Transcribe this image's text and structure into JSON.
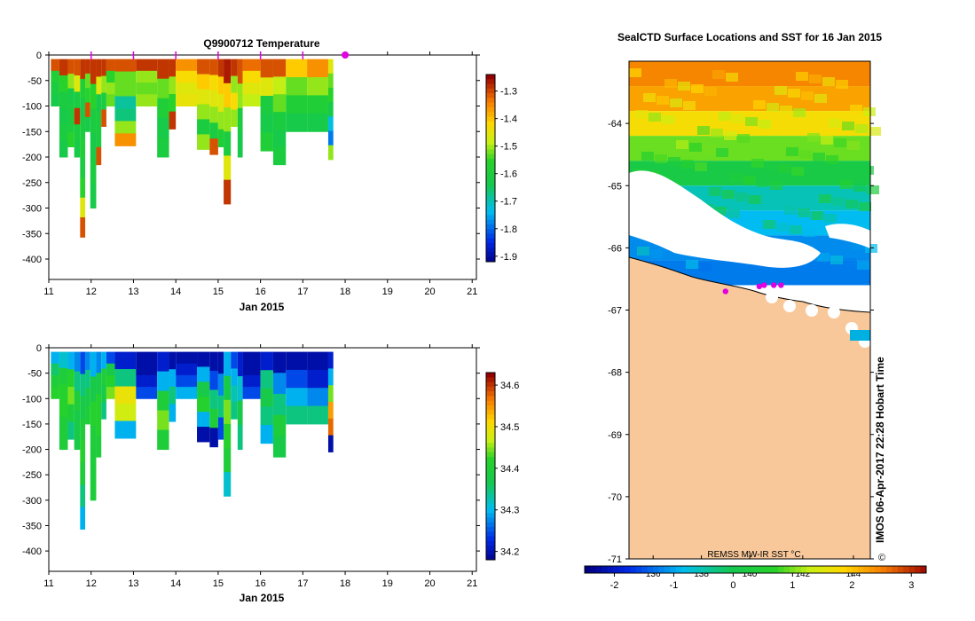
{
  "chart_data": [
    {
      "type": "heatmap",
      "title": "Q9900712  Temperature",
      "xlabel": "Jan 2015",
      "xlim": [
        11,
        21.1
      ],
      "ylim": [
        -440,
        0
      ],
      "x_ticks": [
        "11",
        "12",
        "13",
        "14",
        "15",
        "16",
        "17",
        "18",
        "19",
        "20",
        "21"
      ],
      "y_ticks": [
        "0",
        "-50",
        "-100",
        "-150",
        "-200",
        "-250",
        "-300",
        "-350",
        "-400"
      ],
      "colorbar_ticks": [
        "-1.3",
        "-1.4",
        "-1.5",
        "-1.6",
        "-1.7",
        "-1.8",
        "-1.9"
      ],
      "colorbar_range": [
        -1.92,
        -1.24
      ],
      "profile_markers_x": [
        12,
        13,
        14,
        15,
        16,
        17
      ],
      "current_marker_x": 18,
      "profiles": [
        {
          "x": 11.05,
          "w": 0.2,
          "depth": -100,
          "values": [
            -1.3,
            -1.58,
            -1.6,
            -1.62
          ]
        },
        {
          "x": 11.25,
          "w": 0.2,
          "depth": -200,
          "values": [
            -1.28,
            -1.55,
            -1.6,
            -1.62,
            -1.6,
            -1.62
          ]
        },
        {
          "x": 11.45,
          "w": 0.15,
          "depth": -180,
          "values": [
            -1.3,
            -1.5,
            -1.62,
            -1.6,
            -1.6,
            -1.55
          ]
        },
        {
          "x": 11.6,
          "w": 0.14,
          "depth": -200,
          "values": [
            -1.3,
            -1.45,
            -1.6,
            -1.28,
            -1.6,
            -1.62
          ]
        },
        {
          "x": 11.74,
          "w": 0.12,
          "depth": -357,
          "values": [
            -1.28,
            -1.58,
            -1.62,
            -1.6,
            -1.58,
            -1.6,
            -1.55,
            -1.45,
            -1.3
          ]
        },
        {
          "x": 11.86,
          "w": 0.12,
          "depth": -150,
          "values": [
            -1.28,
            -1.52,
            -1.55,
            -1.3,
            -1.62
          ]
        },
        {
          "x": 11.98,
          "w": 0.14,
          "depth": -300,
          "values": [
            -1.28,
            -1.55,
            -1.6,
            -1.62,
            -1.6,
            -1.62
          ]
        },
        {
          "x": 12.12,
          "w": 0.12,
          "depth": -215,
          "values": [
            -1.28,
            -1.45,
            -1.62,
            -1.6,
            -1.6,
            -1.3
          ]
        },
        {
          "x": 12.24,
          "w": 0.12,
          "depth": -140,
          "values": [
            -1.28,
            -1.5,
            -1.6,
            -1.3
          ]
        },
        {
          "x": 12.36,
          "w": 0.2,
          "depth": -100,
          "values": [
            -1.3,
            -1.55,
            -1.5,
            -1.52
          ]
        },
        {
          "x": 12.56,
          "w": 0.5,
          "depth": -178,
          "values": [
            -1.3,
            -1.52,
            -1.52,
            -1.68,
            -1.66,
            -1.5,
            -1.35
          ]
        },
        {
          "x": 13.06,
          "w": 0.5,
          "depth": -100,
          "values": [
            -1.28,
            -1.5,
            -1.52,
            -1.5
          ]
        },
        {
          "x": 13.56,
          "w": 0.28,
          "depth": -200,
          "values": [
            -1.28,
            -1.52,
            -1.58,
            -1.62,
            -1.6
          ]
        },
        {
          "x": 13.84,
          "w": 0.16,
          "depth": -145,
          "values": [
            -1.28,
            -1.5,
            -1.55,
            -1.28
          ]
        },
        {
          "x": 14.0,
          "w": 0.5,
          "depth": -100,
          "values": [
            -1.35,
            -1.42,
            -1.45,
            -1.44
          ]
        },
        {
          "x": 14.5,
          "w": 0.3,
          "depth": -185,
          "values": [
            -1.3,
            -1.4,
            -1.45,
            -1.5,
            -1.6,
            -1.5
          ]
        },
        {
          "x": 14.8,
          "w": 0.2,
          "depth": -195,
          "values": [
            -1.3,
            -1.42,
            -1.45,
            -1.5,
            -1.6,
            -1.3
          ]
        },
        {
          "x": 15.0,
          "w": 0.13,
          "depth": -180,
          "values": [
            -1.28,
            -1.4,
            -1.45,
            -1.5,
            -1.58
          ]
        },
        {
          "x": 15.13,
          "w": 0.17,
          "depth": -292,
          "values": [
            -1.26,
            -1.4,
            -1.5,
            -1.6,
            -1.45,
            -1.28
          ]
        },
        {
          "x": 15.3,
          "w": 0.16,
          "depth": -140,
          "values": [
            -1.28,
            -1.5,
            -1.42,
            -1.5
          ]
        },
        {
          "x": 15.46,
          "w": 0.12,
          "depth": -200,
          "values": [
            -1.3,
            -1.5,
            -1.6,
            -1.62
          ]
        },
        {
          "x": 15.58,
          "w": 0.42,
          "depth": -100,
          "values": [
            -1.32,
            -1.42,
            -1.45,
            -1.48
          ]
        },
        {
          "x": 16.0,
          "w": 0.3,
          "depth": -188,
          "values": [
            -1.3,
            -1.45,
            -1.6,
            -1.62,
            -1.58
          ]
        },
        {
          "x": 16.3,
          "w": 0.3,
          "depth": -215,
          "values": [
            -1.3,
            -1.48,
            -1.52,
            -1.6,
            -1.62,
            -1.6
          ]
        },
        {
          "x": 16.6,
          "w": 0.5,
          "depth": -150,
          "values": [
            -1.4,
            -1.52,
            -1.58,
            -1.62
          ]
        },
        {
          "x": 17.1,
          "w": 0.5,
          "depth": -150,
          "values": [
            -1.35,
            -1.5,
            -1.58,
            -1.62
          ]
        },
        {
          "x": 17.6,
          "w": 0.12,
          "depth": -205,
          "values": [
            -1.45,
            -1.52,
            -1.55,
            -1.62,
            -1.72,
            -1.78,
            -1.5
          ]
        }
      ]
    },
    {
      "type": "heatmap",
      "title": "",
      "xlabel": "Jan 2015",
      "xlim": [
        11,
        21.1
      ],
      "ylim": [
        -440,
        0
      ],
      "x_ticks": [
        "11",
        "12",
        "13",
        "14",
        "15",
        "16",
        "17",
        "18",
        "19",
        "20",
        "21"
      ],
      "y_ticks": [
        "0",
        "-50",
        "-100",
        "-150",
        "-200",
        "-250",
        "-300",
        "-350",
        "-400"
      ],
      "colorbar_ticks": [
        "34.6",
        "34.5",
        "34.4",
        "34.3",
        "34.2"
      ],
      "colorbar_range": [
        34.18,
        34.63
      ],
      "profiles": [
        {
          "x": 11.05,
          "w": 0.2,
          "depth": -100,
          "values": [
            34.3,
            34.36,
            34.4,
            34.42
          ]
        },
        {
          "x": 11.25,
          "w": 0.2,
          "depth": -200,
          "values": [
            34.32,
            34.4,
            34.42,
            34.42,
            34.4,
            34.4
          ]
        },
        {
          "x": 11.45,
          "w": 0.15,
          "depth": -180,
          "values": [
            34.3,
            34.42,
            34.45,
            34.4,
            34.35
          ]
        },
        {
          "x": 11.6,
          "w": 0.14,
          "depth": -200,
          "values": [
            34.28,
            34.35,
            34.4,
            34.38,
            34.38
          ]
        },
        {
          "x": 11.74,
          "w": 0.12,
          "depth": -357,
          "values": [
            34.25,
            34.35,
            34.38,
            34.4,
            34.42,
            34.4,
            34.35,
            34.3
          ]
        },
        {
          "x": 11.86,
          "w": 0.12,
          "depth": -150,
          "values": [
            34.28,
            34.35,
            34.38,
            34.4
          ]
        },
        {
          "x": 11.98,
          "w": 0.14,
          "depth": -300,
          "values": [
            34.3,
            34.38,
            34.42,
            34.4,
            34.4,
            34.4
          ]
        },
        {
          "x": 12.12,
          "w": 0.12,
          "depth": -215,
          "values": [
            34.28,
            34.38,
            34.42,
            34.42,
            34.4
          ]
        },
        {
          "x": 12.24,
          "w": 0.12,
          "depth": -140,
          "values": [
            34.3,
            34.4,
            34.38,
            34.35
          ]
        },
        {
          "x": 12.36,
          "w": 0.2,
          "depth": -100,
          "values": [
            34.25,
            34.38,
            34.42,
            34.45
          ]
        },
        {
          "x": 12.56,
          "w": 0.5,
          "depth": -178,
          "values": [
            34.22,
            34.35,
            34.5,
            34.48,
            34.3
          ]
        },
        {
          "x": 13.06,
          "w": 0.5,
          "depth": -100,
          "values": [
            34.2,
            34.2,
            34.22,
            34.25
          ]
        },
        {
          "x": 13.56,
          "w": 0.28,
          "depth": -200,
          "values": [
            34.22,
            34.3,
            34.4,
            34.45,
            34.4
          ]
        },
        {
          "x": 13.84,
          "w": 0.16,
          "depth": -145,
          "values": [
            34.2,
            34.3,
            34.35,
            34.3
          ]
        },
        {
          "x": 14.0,
          "w": 0.5,
          "depth": -100,
          "values": [
            34.2,
            34.22,
            34.25,
            34.3
          ]
        },
        {
          "x": 14.5,
          "w": 0.3,
          "depth": -185,
          "values": [
            34.2,
            34.3,
            34.38,
            34.42,
            34.3,
            34.2
          ]
        },
        {
          "x": 14.8,
          "w": 0.2,
          "depth": -195,
          "values": [
            34.2,
            34.25,
            34.35,
            34.4,
            34.2
          ]
        },
        {
          "x": 15.0,
          "w": 0.13,
          "depth": -180,
          "values": [
            34.2,
            34.28,
            34.35,
            34.25
          ]
        },
        {
          "x": 15.13,
          "w": 0.17,
          "depth": -292,
          "values": [
            34.3,
            34.38,
            34.45,
            34.42,
            34.4,
            34.32
          ]
        },
        {
          "x": 15.3,
          "w": 0.16,
          "depth": -140,
          "values": [
            34.25,
            34.3,
            34.33,
            34.35
          ]
        },
        {
          "x": 15.46,
          "w": 0.12,
          "depth": -200,
          "values": [
            34.22,
            34.32,
            34.38,
            34.35
          ]
        },
        {
          "x": 15.58,
          "w": 0.42,
          "depth": -100,
          "values": [
            34.2,
            34.2,
            34.22,
            34.25
          ]
        },
        {
          "x": 16.0,
          "w": 0.3,
          "depth": -188,
          "values": [
            34.22,
            34.35,
            34.38,
            34.35,
            34.3
          ]
        },
        {
          "x": 16.3,
          "w": 0.3,
          "depth": -215,
          "values": [
            34.2,
            34.28,
            34.35,
            34.4,
            34.38
          ]
        },
        {
          "x": 16.6,
          "w": 0.5,
          "depth": -150,
          "values": [
            34.2,
            34.25,
            34.3,
            34.35
          ]
        },
        {
          "x": 17.1,
          "w": 0.5,
          "depth": -150,
          "values": [
            34.2,
            34.22,
            34.28,
            34.35
          ]
        },
        {
          "x": 17.6,
          "w": 0.12,
          "depth": -205,
          "values": [
            34.22,
            34.3,
            34.45,
            34.55,
            34.58,
            34.2
          ]
        }
      ]
    },
    {
      "type": "heatmap",
      "title": "SealCTD Surface Locations and SST for 16 Jan 2015",
      "y_ticks": [
        "-64",
        "-65",
        "-66",
        "-67",
        "-68",
        "-69",
        "-70",
        "-71"
      ],
      "ylim": [
        -71,
        -63
      ],
      "lon_ticks": [
        "136",
        "138",
        "140",
        "142",
        "144"
      ],
      "colorbar_label": "REMSS MW-IR SST °C",
      "colorbar_ticks": [
        "-2",
        "-1",
        "0",
        "1",
        "2",
        "3"
      ],
      "colorbar_range": [
        -2.5,
        3.25
      ],
      "sst_rows": [
        {
          "lat": -63.2,
          "sst": 2.4
        },
        {
          "lat": -63.6,
          "sst": 2.2
        },
        {
          "lat": -64.0,
          "sst": 1.7
        },
        {
          "lat": -64.4,
          "sst": 0.9
        },
        {
          "lat": -64.8,
          "sst": 0.1
        },
        {
          "lat": -65.2,
          "sst": -0.6
        },
        {
          "lat": -65.6,
          "sst": -0.9
        },
        {
          "lat": -66.0,
          "sst": -1.2
        },
        {
          "lat": -66.4,
          "sst": -1.3
        }
      ],
      "seal_locations": [
        {
          "lat": -66.62,
          "lon_frac": 0.54
        },
        {
          "lat": -66.6,
          "lon_frac": 0.56
        },
        {
          "lat": -66.6,
          "lon_frac": 0.6
        },
        {
          "lat": -66.6,
          "lon_frac": 0.63
        },
        {
          "lat": -66.7,
          "lon_frac": 0.4
        }
      ],
      "credit": "IMOS 06-Apr-2017 22:28 Hobart Time",
      "copyright": "©"
    }
  ]
}
